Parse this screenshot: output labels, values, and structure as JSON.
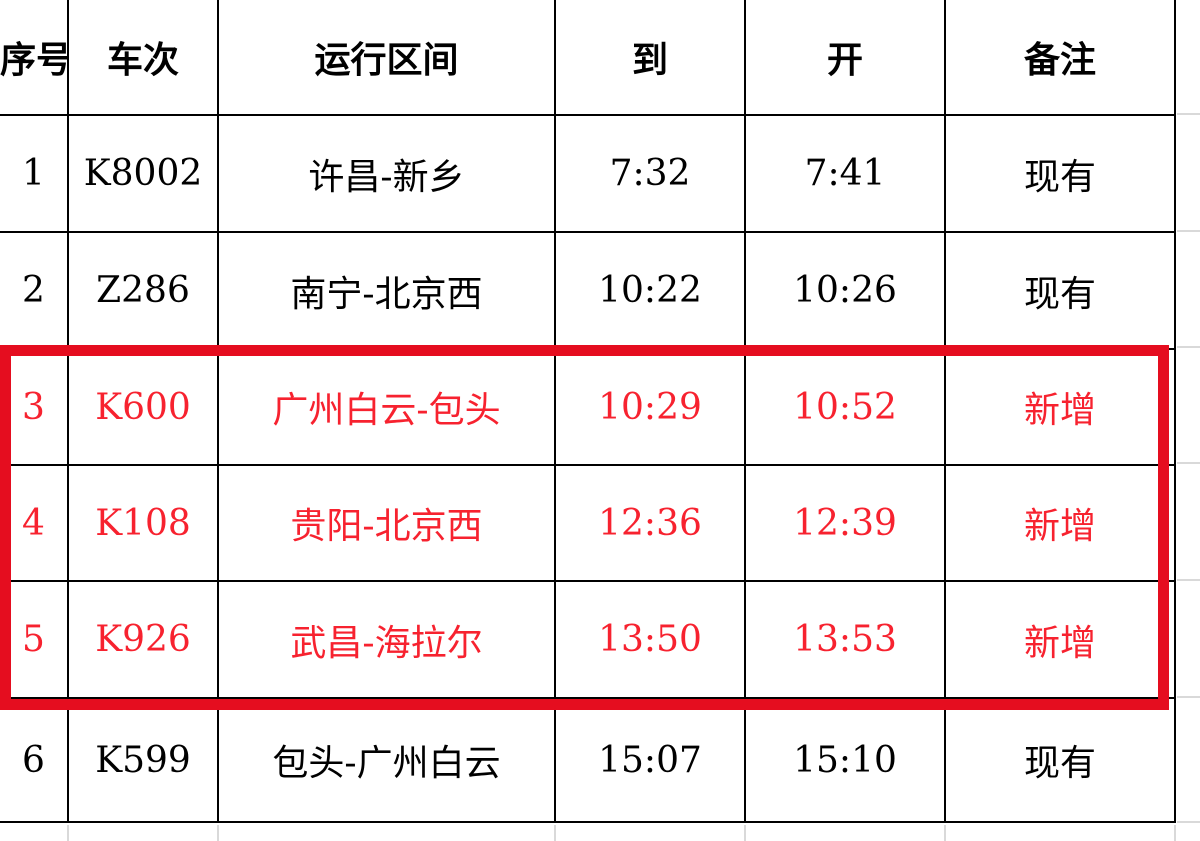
{
  "table": {
    "columns": [
      {
        "key": "index",
        "label": "序号"
      },
      {
        "key": "train",
        "label": "车次"
      },
      {
        "key": "route",
        "label": "运行区间"
      },
      {
        "key": "arrive",
        "label": "到"
      },
      {
        "key": "depart",
        "label": "开"
      },
      {
        "key": "remark",
        "label": "备注"
      }
    ],
    "rows": [
      {
        "index": "1",
        "train": "K8002",
        "route": "许昌-新乡",
        "arrive": "7:32",
        "depart": "7:41",
        "remark": "现有",
        "highlighted": false
      },
      {
        "index": "2",
        "train": "Z286",
        "route": "南宁-北京西",
        "arrive": "10:22",
        "depart": "10:26",
        "remark": "现有",
        "highlighted": false
      },
      {
        "index": "3",
        "train": "K600",
        "route": "广州白云-包头",
        "arrive": "10:29",
        "depart": "10:52",
        "remark": "新增",
        "highlighted": true
      },
      {
        "index": "4",
        "train": "K108",
        "route": "贵阳-北京西",
        "arrive": "12:36",
        "depart": "12:39",
        "remark": "新增",
        "highlighted": true
      },
      {
        "index": "5",
        "train": "K926",
        "route": "武昌-海拉尔",
        "arrive": "13:50",
        "depart": "13:53",
        "remark": "新增",
        "highlighted": true
      },
      {
        "index": "6",
        "train": "K599",
        "route": "包头-广州白云",
        "arrive": "15:07",
        "depart": "15:10",
        "remark": "现有",
        "highlighted": false
      }
    ]
  },
  "annotation": {
    "shape": "red-rectangle",
    "covers_row_indexes": [
      "3",
      "4",
      "5"
    ]
  },
  "colors": {
    "highlight_border": "#e50d1f",
    "highlight_text": "#f7222f",
    "grid_black": "#000000",
    "grid_faint": "#d9d9d9",
    "text": "#000000",
    "background": "#ffffff"
  }
}
